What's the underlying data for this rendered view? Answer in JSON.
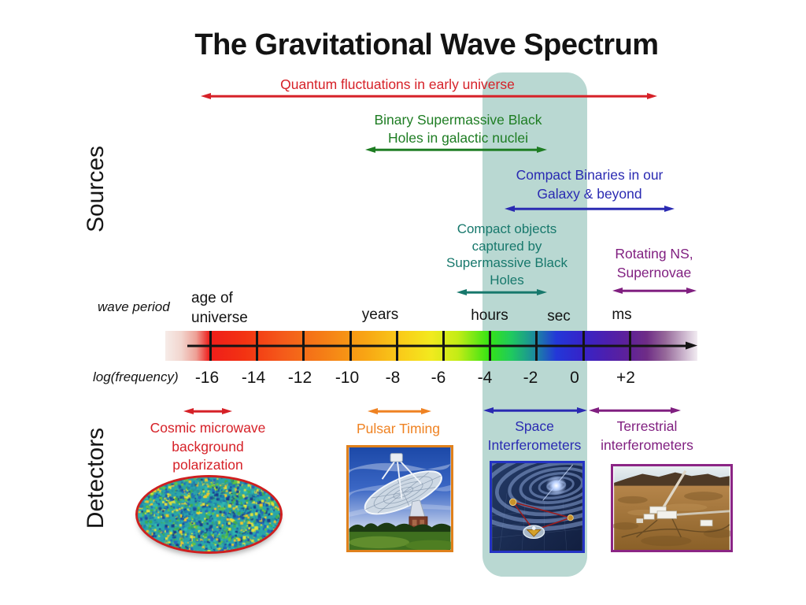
{
  "title": "The Gravitational Wave Spectrum",
  "side_labels": {
    "sources": "Sources",
    "detectors": "Detectors"
  },
  "band_color": "#b9d8d2",
  "axis": {
    "wave_period_label": "wave period",
    "log_frequency_label": "log(frequency)",
    "period_labels": {
      "age": "age of\nuniverse",
      "years": "years",
      "hours": "hours",
      "sec": "sec",
      "ms": "ms"
    },
    "frequency_ticks": [
      "-16",
      "-14",
      "-12",
      "-10",
      "-8",
      "-6",
      "-4",
      "-2",
      "0",
      "+2"
    ]
  },
  "sources": [
    {
      "id": "quantum-fluctuations",
      "label": "Quantum fluctuations in early universe",
      "color": "#d62128"
    },
    {
      "id": "binary-smbh",
      "label": "Binary Supermassive Black\nHoles in galactic nuclei",
      "color": "#1e7d23"
    },
    {
      "id": "compact-binaries",
      "label": "Compact Binaries in our\nGalaxy & beyond",
      "color": "#2a2ab2"
    },
    {
      "id": "compact-objects",
      "label": "Compact objects\ncaptured by\nSupermassive Black\nHoles",
      "color": "#17786c"
    },
    {
      "id": "rotating-ns",
      "label": "Rotating NS,\nSupernovae",
      "color": "#801f80"
    }
  ],
  "detectors": [
    {
      "id": "cmb-polarization",
      "label": "Cosmic microwave\nbackground\npolarization",
      "color": "#d62128"
    },
    {
      "id": "pulsar-timing",
      "label": "Pulsar Timing",
      "color": "#ef8222"
    },
    {
      "id": "space-interferometers",
      "label": "Space\nInterferometers",
      "color": "#2a2ab2"
    },
    {
      "id": "terrestrial-interferometers",
      "label": "Terrestrial\ninterferometers",
      "color": "#801f80"
    }
  ]
}
